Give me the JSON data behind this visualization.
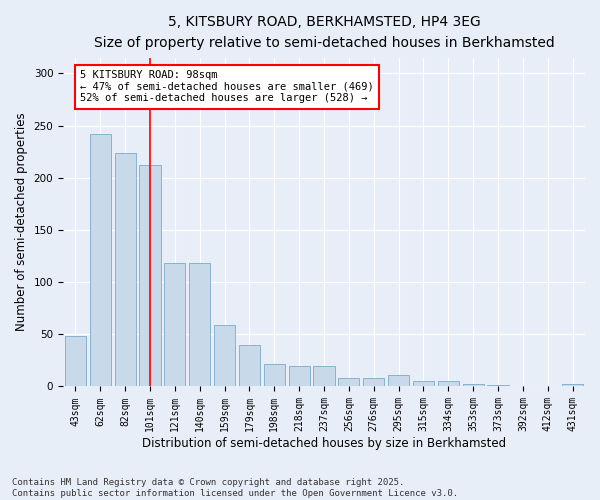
{
  "title_line1": "5, KITSBURY ROAD, BERKHAMSTED, HP4 3EG",
  "title_line2": "Size of property relative to semi-detached houses in Berkhamsted",
  "xlabel": "Distribution of semi-detached houses by size in Berkhamsted",
  "ylabel": "Number of semi-detached properties",
  "categories": [
    "43sqm",
    "62sqm",
    "82sqm",
    "101sqm",
    "121sqm",
    "140sqm",
    "159sqm",
    "179sqm",
    "198sqm",
    "218sqm",
    "237sqm",
    "256sqm",
    "276sqm",
    "295sqm",
    "315sqm",
    "334sqm",
    "353sqm",
    "373sqm",
    "392sqm",
    "412sqm",
    "431sqm"
  ],
  "values": [
    48,
    242,
    224,
    212,
    118,
    118,
    59,
    40,
    22,
    20,
    20,
    8,
    8,
    11,
    5,
    5,
    2,
    1,
    0,
    0,
    2
  ],
  "bar_color": "#c8d9ea",
  "bar_edge_color": "#7aaac8",
  "vline_x": 3,
  "vline_color": "red",
  "annotation_box_text": "5 KITSBURY ROAD: 98sqm\n← 47% of semi-detached houses are smaller (469)\n52% of semi-detached houses are larger (528) →",
  "ylim": [
    0,
    315
  ],
  "yticks": [
    0,
    50,
    100,
    150,
    200,
    250,
    300
  ],
  "background_color": "#e8eef8",
  "plot_bg_color": "#e8eef8",
  "footer_text": "Contains HM Land Registry data © Crown copyright and database right 2025.\nContains public sector information licensed under the Open Government Licence v3.0.",
  "title_fontsize": 10,
  "subtitle_fontsize": 9,
  "axis_label_fontsize": 8.5,
  "tick_fontsize": 7,
  "annotation_fontsize": 7.5,
  "footer_fontsize": 6.5
}
